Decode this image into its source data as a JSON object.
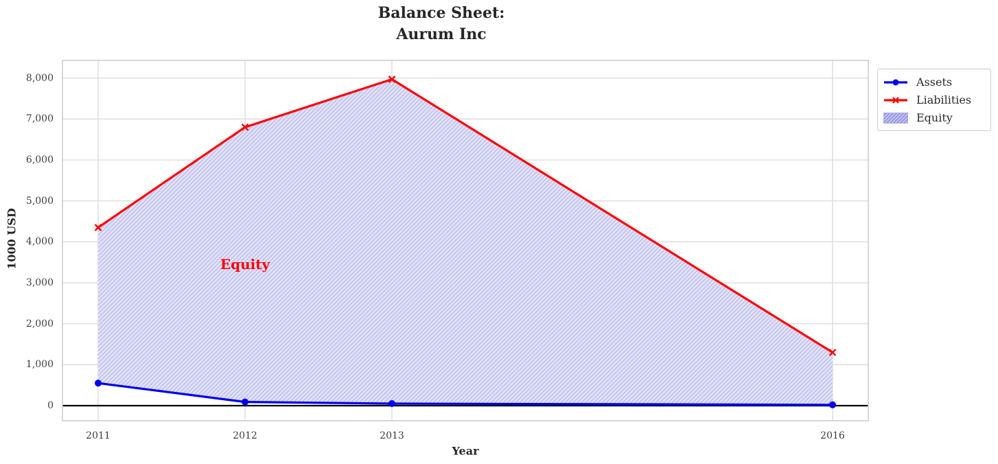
{
  "chart_data": {
    "type": "line",
    "title": "Balance Sheet:\nAurum Inc",
    "title_lines": {
      "line1": "Balance Sheet:",
      "line2": "Aurum Inc"
    },
    "xlabel": "Year",
    "ylabel": "1000 USD",
    "x": [
      2011,
      2012,
      2013,
      2016
    ],
    "xtick_labels": [
      "2011",
      "2012",
      "2013",
      "2016"
    ],
    "yticks": [
      0,
      1000,
      2000,
      3000,
      4000,
      5000,
      6000,
      7000,
      8000
    ],
    "ytick_labels": [
      "0",
      "1,000",
      "2,000",
      "3,000",
      "4,000",
      "5,000",
      "6,000",
      "7,000",
      "8,000"
    ],
    "xlim": [
      2010.76,
      2016.24
    ],
    "ylim": [
      -370,
      8430
    ],
    "grid": true,
    "series": [
      {
        "name": "Assets",
        "color": "#0000ee",
        "marker": "circle",
        "values": [
          550,
          90,
          50,
          20
        ]
      },
      {
        "name": "Liabilities",
        "color": "#ff0000",
        "marker": "x",
        "values": [
          4350,
          6800,
          7970,
          1300
        ]
      }
    ],
    "area": {
      "name": "Equity",
      "between": [
        "Assets",
        "Liabilities"
      ],
      "hatch": "/"
    },
    "annotation": {
      "text": "Equity",
      "x": 2012,
      "y": 3450,
      "color": "#ff0000"
    },
    "baseline_y": 0,
    "legend": {
      "position": "outside-top-right",
      "entries": [
        "Assets",
        "Liabilities",
        "Equity"
      ]
    },
    "colors": {
      "assets": "#0000ee",
      "liabilities": "#ff0000",
      "equity_fill": "#e2e2f8",
      "equity_hatch": "#bebeee",
      "equity_swatch_fill": "#c4c4f2",
      "equity_swatch_hatch": "#8a8ae0",
      "equity_swatch_border": "#aaaae8",
      "grid": "#dcdcdc",
      "frame": "#c8c8c8",
      "baseline": "#000000",
      "title_text": "#262626",
      "tick_text": "#3c3c3c"
    }
  }
}
